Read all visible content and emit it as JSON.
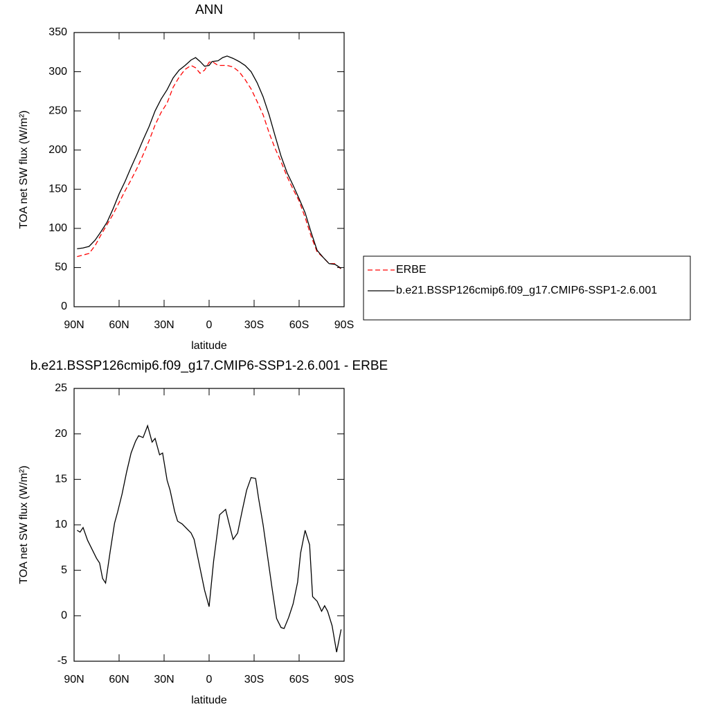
{
  "chart_data": [
    {
      "type": "line",
      "title": "ANN",
      "x_label": "latitude",
      "y_label": "TOA net SW flux (W/m²)",
      "x": [
        88,
        84,
        80,
        76,
        72,
        68,
        64,
        60,
        56,
        52,
        48,
        44,
        40,
        36,
        32,
        28,
        24,
        20,
        16,
        12,
        9,
        6,
        3,
        0,
        -2,
        -6,
        -9,
        -12,
        -16,
        -20,
        -24,
        -28,
        -32,
        -36,
        -40,
        -44,
        -48,
        -52,
        -56,
        -60,
        -64,
        -68,
        -72,
        -76,
        -80,
        -84,
        -88
      ],
      "series": [
        {
          "name": "ERBE",
          "color": "#ff0000",
          "line_style": "dashed",
          "values": [
            64,
            66,
            68,
            78,
            92,
            105,
            118,
            133,
            148,
            162,
            177,
            194,
            212,
            232,
            248,
            260,
            280,
            293,
            303,
            308,
            305,
            298,
            302,
            312,
            313,
            308,
            308,
            308,
            306,
            300,
            290,
            278,
            262,
            245,
            222,
            202,
            185,
            166,
            150,
            135,
            114,
            90,
            70,
            63,
            55,
            55,
            48
          ]
        },
        {
          "name": "b.e21.BSSP126cmip6.f09_g17.CMIP6-SSP1-2.6.001",
          "color": "#000000",
          "line_style": "solid",
          "values": [
            74,
            75,
            77,
            85,
            96,
            108,
            125,
            144,
            160,
            178,
            195,
            213,
            230,
            250,
            265,
            277,
            292,
            302,
            308,
            315,
            318,
            313,
            307,
            308,
            313,
            314,
            318,
            320,
            317,
            313,
            308,
            300,
            286,
            268,
            245,
            218,
            192,
            171,
            155,
            138,
            120,
            95,
            72,
            63,
            55,
            54,
            49
          ]
        }
      ],
      "xlim": [
        90,
        -90
      ],
      "xticks": [
        {
          "value": 90,
          "label": "90N"
        },
        {
          "value": 60,
          "label": "60N"
        },
        {
          "value": 30,
          "label": "30N"
        },
        0,
        {
          "value": -30,
          "label": "30S"
        },
        {
          "value": -60,
          "label": "60S"
        },
        {
          "value": -90,
          "label": "90S"
        }
      ],
      "ylim": [
        0,
        350
      ],
      "yticks": [
        0,
        50,
        100,
        150,
        200,
        250,
        300,
        350
      ],
      "legend": "right"
    },
    {
      "type": "line",
      "title": "b.e21.BSSP126cmip6.f09_g17.CMIP6-SSP1-2.6.001 - ERBE",
      "x_label": "latitude",
      "y_label": "TOA net SW flux (W/m²)",
      "x": [
        88,
        86,
        84,
        81,
        78,
        75,
        73,
        71,
        69,
        66,
        63,
        61,
        58,
        55,
        52,
        49,
        47,
        44,
        41,
        38,
        36,
        33,
        31,
        28,
        26,
        23,
        21,
        18,
        15,
        12,
        10,
        7,
        3,
        0,
        -3,
        -7,
        -11,
        -14,
        -16,
        -19,
        -22,
        -25,
        -28,
        -31,
        -33,
        -36,
        -39,
        -42,
        -45,
        -48,
        -50,
        -53,
        -56,
        -59,
        -61,
        -64,
        -67,
        -69,
        -72,
        -75,
        -77,
        -79,
        -82,
        -85,
        -88
      ],
      "series": [
        {
          "name": null,
          "color": "#000000",
          "line_style": "solid",
          "values": [
            9.4,
            9.2,
            9.7,
            8.3,
            7.3,
            6.3,
            5.8,
            4.1,
            3.6,
            7.0,
            10.2,
            11.4,
            13.4,
            15.8,
            17.9,
            19.2,
            19.8,
            19.6,
            20.9,
            19.1,
            19.5,
            17.7,
            17.9,
            14.9,
            13.8,
            11.5,
            10.4,
            10.1,
            9.6,
            9.1,
            8.4,
            6.0,
            2.8,
            1.0,
            6.0,
            11.1,
            11.7,
            9.7,
            8.4,
            9.1,
            11.5,
            13.8,
            15.2,
            15.1,
            12.9,
            10.0,
            6.5,
            3.0,
            -0.3,
            -1.3,
            -1.4,
            -0.2,
            1.3,
            3.7,
            6.9,
            9.4,
            7.8,
            2.1,
            1.6,
            0.5,
            1.1,
            0.5,
            -1.1,
            -4.0,
            -1.5
          ]
        }
      ],
      "xlim": [
        90,
        -90
      ],
      "xticks": [
        {
          "value": 90,
          "label": "90N"
        },
        {
          "value": 60,
          "label": "60N"
        },
        {
          "value": 30,
          "label": "30N"
        },
        0,
        {
          "value": -30,
          "label": "30S"
        },
        {
          "value": -60,
          "label": "60S"
        },
        {
          "value": -90,
          "label": "90S"
        }
      ],
      "ylim": [
        -5,
        25
      ],
      "yticks": [
        -5,
        0,
        5,
        10,
        15,
        20,
        25
      ]
    }
  ]
}
